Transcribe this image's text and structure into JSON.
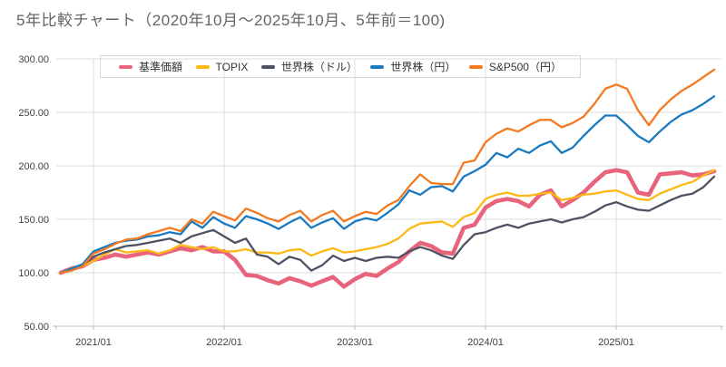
{
  "chart_data": {
    "type": "line",
    "title": "5年比較チャート（2020年10月～2025年10月、5年前＝100)",
    "period_start": "2020/10",
    "period_end": "2025/10",
    "base_value_note": "5年前＝100",
    "months_count": 61,
    "x_tick_labels": [
      "2021/01",
      "2022/01",
      "2023/01",
      "2024/01",
      "2025/01"
    ],
    "x_tick_month_indices": [
      3,
      15,
      27,
      39,
      51
    ],
    "y_tick_labels": [
      "300.00",
      "250.00",
      "200.00",
      "150.00",
      "100.00",
      "50.00"
    ],
    "y_tick_values": [
      300,
      250,
      200,
      150,
      100,
      50
    ],
    "ylim": [
      50,
      300
    ],
    "grid": true,
    "legend_position": "top",
    "colors": {
      "grid": "#dcdcdc",
      "axis": "#bfbfbf",
      "tick_label": "#404040",
      "title": "#646464"
    },
    "series": [
      {
        "name": "基準価額",
        "key": "fund-nav",
        "color": "#e8647d",
        "stroke_width": 4.6,
        "values": [
          100,
          104,
          106,
          112,
          114,
          117,
          115,
          117,
          119,
          117,
          120,
          123,
          121,
          124,
          120,
          120,
          112,
          98,
          97,
          93,
          90,
          95,
          92,
          88,
          92,
          96,
          87,
          94,
          99,
          97,
          104,
          110,
          120,
          128,
          125,
          119,
          118,
          142,
          145,
          161,
          167,
          169,
          167,
          162,
          173,
          177,
          162,
          168,
          175,
          185,
          194,
          196,
          194,
          175,
          173,
          192,
          193,
          194,
          191,
          192,
          195
        ]
      },
      {
        "name": "TOPIX",
        "key": "topix",
        "color": "#fdb813",
        "stroke_width": 2.3,
        "values": [
          100,
          103,
          106,
          111,
          117,
          122,
          119,
          120,
          121,
          118,
          121,
          126,
          124,
          122,
          124,
          120,
          120,
          122,
          119,
          119,
          118,
          121,
          122,
          116,
          120,
          123,
          119,
          120,
          122,
          124,
          127,
          132,
          141,
          146,
          147,
          148,
          143,
          152,
          156,
          169,
          173,
          175,
          172,
          172,
          174,
          175,
          168,
          170,
          173,
          174,
          176,
          177,
          173,
          169,
          168,
          174,
          178,
          182,
          185,
          191,
          196
        ]
      },
      {
        "name": "世界株（ドル）",
        "key": "world-stocks-usd",
        "color": "#4e5263",
        "stroke_width": 2.3,
        "values": [
          100,
          103,
          107,
          115,
          119,
          122,
          125,
          126,
          128,
          130,
          132,
          128,
          134,
          137,
          140,
          134,
          128,
          132,
          117,
          115,
          108,
          115,
          112,
          102,
          107,
          116,
          111,
          114,
          111,
          114,
          115,
          114,
          120,
          124,
          121,
          116,
          113,
          126,
          136,
          138,
          142,
          145,
          142,
          146,
          148,
          150,
          147,
          150,
          152,
          157,
          163,
          166,
          162,
          159,
          158,
          163,
          168,
          172,
          174,
          180,
          190
        ]
      },
      {
        "name": "世界株（円）",
        "key": "world-stocks-jpy",
        "color": "#1a7abf",
        "stroke_width": 2.3,
        "values": [
          100,
          104,
          108,
          120,
          124,
          128,
          130,
          131,
          134,
          135,
          138,
          136,
          148,
          142,
          152,
          146,
          142,
          153,
          150,
          146,
          141,
          147,
          152,
          142,
          147,
          151,
          141,
          148,
          151,
          149,
          156,
          164,
          177,
          173,
          180,
          181,
          176,
          190,
          195,
          201,
          212,
          208,
          216,
          212,
          219,
          223,
          212,
          217,
          228,
          238,
          247,
          247,
          238,
          228,
          222,
          232,
          241,
          248,
          252,
          258,
          265
        ]
      },
      {
        "name": "S&P500（円）",
        "key": "sp500-jpy",
        "color": "#f57921",
        "stroke_width": 2.3,
        "values": [
          100,
          102,
          106,
          118,
          122,
          127,
          131,
          132,
          136,
          139,
          142,
          139,
          150,
          146,
          157,
          153,
          149,
          160,
          156,
          151,
          148,
          154,
          158,
          148,
          154,
          158,
          148,
          153,
          157,
          155,
          163,
          168,
          181,
          192,
          184,
          183,
          183,
          203,
          205,
          222,
          230,
          235,
          232,
          238,
          243,
          243,
          236,
          240,
          246,
          258,
          272,
          276,
          272,
          252,
          238,
          252,
          262,
          270,
          276,
          283,
          290
        ]
      }
    ]
  }
}
